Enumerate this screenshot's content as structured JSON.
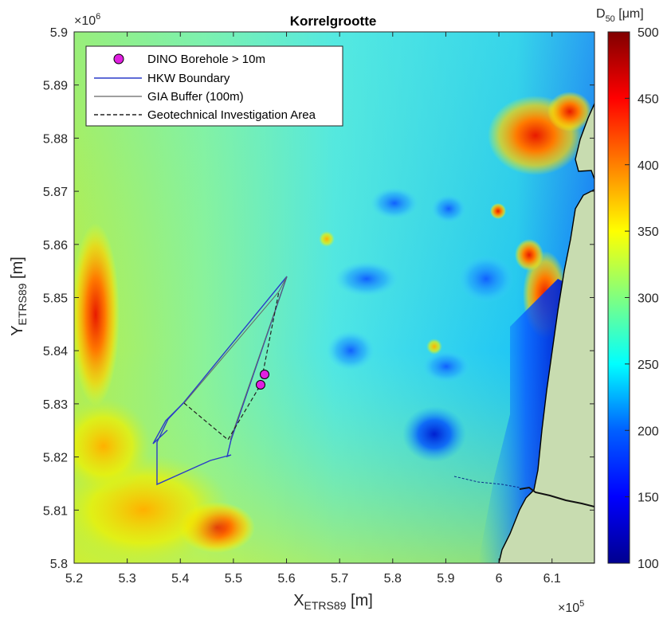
{
  "title": "Korrelgrootte",
  "x_multiplier": {
    "base": "×10",
    "exp": "5"
  },
  "y_multiplier": {
    "base": "×10",
    "exp": "6"
  },
  "x_axis_label": {
    "main": "X",
    "sub": "ETRS89",
    "unit": " [m]"
  },
  "y_axis_label": {
    "main": "Y",
    "sub": "ETRS89",
    "unit": " [m]"
  },
  "colorbar_label": {
    "main": "D",
    "sub": "50",
    "unit": " [μm]"
  },
  "x_ticks": [
    "5.2",
    "5.3",
    "5.4",
    "5.5",
    "5.6",
    "5.7",
    "5.8",
    "5.9",
    "6",
    "6.1"
  ],
  "y_ticks": [
    "5.8",
    "5.81",
    "5.82",
    "5.83",
    "5.84",
    "5.85",
    "5.86",
    "5.87",
    "5.88",
    "5.89",
    "5.9"
  ],
  "colorbar_ticks": [
    "100",
    "150",
    "200",
    "250",
    "300",
    "350",
    "400",
    "450",
    "500"
  ],
  "legend": [
    {
      "label": "DINO Borehole > 10m"
    },
    {
      "label": "HKW Boundary"
    },
    {
      "label": "GIA Buffer (100m)"
    },
    {
      "label": "Geotechnical Investigation Area"
    }
  ],
  "colors": {
    "colormap": [
      "#00008f",
      "#0000ff",
      "#0080ff",
      "#00ffff",
      "#80ff80",
      "#ffff00",
      "#ff8000",
      "#ff0000",
      "#800000"
    ],
    "land": "#c8dcb0",
    "hkw_boundary": "#2a3cc8",
    "gia_buffer": "#666666",
    "geotechnical_area": "#222222",
    "borehole": "#e020e0"
  },
  "chart_data": {
    "type": "heatmap",
    "title": "Korrelgrootte",
    "xlabel": "X_ETRS89 [m]",
    "ylabel": "Y_ETRS89 [m]",
    "colorbar": "D_50 [μm]",
    "xlim": [
      520000,
      618000
    ],
    "ylim": [
      5800000,
      5900000
    ],
    "clim": [
      100,
      500
    ],
    "boreholes": [
      {
        "x": 556200,
        "y": 5835300
      },
      {
        "x": 555300,
        "y": 5833400
      }
    ]
  }
}
